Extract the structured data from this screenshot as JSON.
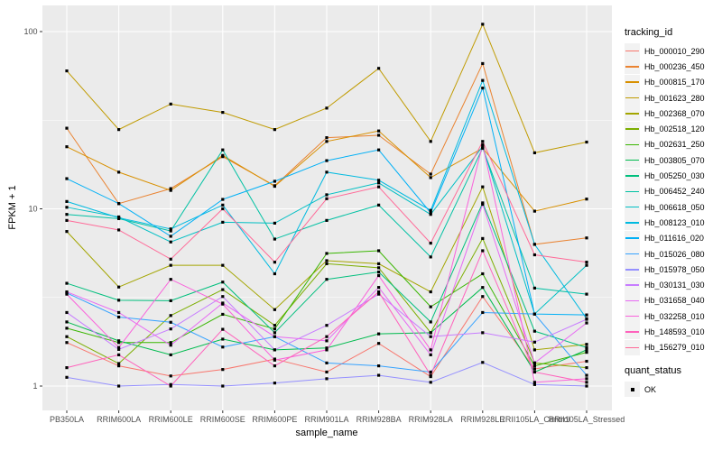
{
  "chart_data": {
    "type": "line",
    "title": "",
    "xlabel": "sample_name",
    "ylabel": "FPKM + 1",
    "y_scale": "log10",
    "y_ticks": [
      1,
      10,
      100
    ],
    "y_tick_labels": [
      "1",
      "10",
      "100"
    ],
    "y_minor_breaks": [
      3.1623,
      31.623
    ],
    "ylim": [
      0.73,
      140
    ],
    "grid": true,
    "legend_position": "right",
    "point_shape": "filled-black-square",
    "categories": [
      "PB350LA",
      "RRIM600LA",
      "RRIM600LE",
      "RRIM600SE",
      "RRIM600PE",
      "RRIM901LA",
      "RRIM928BA",
      "RRIM928LA",
      "RRIM928LE",
      "RRII105LA_Control",
      "RRII105LA_Stressed"
    ],
    "series": [
      {
        "name": "Hb_000010_290",
        "color": "#F8766D",
        "values": [
          1.76,
          1.3,
          1.14,
          1.24,
          1.42,
          1.2,
          1.74,
          1.13,
          3.2,
          1.25,
          1.38
        ]
      },
      {
        "name": "Hb_000236_450",
        "color": "#EA8331",
        "values": [
          28.5,
          10.7,
          13.0,
          19.7,
          13.5,
          25.2,
          26.0,
          15.7,
          66.0,
          6.3,
          6.85
        ]
      },
      {
        "name": "Hb_000815_170",
        "color": "#D89000",
        "values": [
          22.4,
          16.1,
          12.7,
          20.0,
          13.4,
          24.0,
          27.5,
          15.0,
          22.0,
          9.7,
          11.35
        ]
      },
      {
        "name": "Hb_001623_280",
        "color": "#C09B00",
        "values": [
          60.0,
          28.0,
          39.0,
          35.0,
          28.0,
          37.0,
          62.0,
          24.0,
          110.0,
          20.7,
          23.8
        ]
      },
      {
        "name": "Hb_002368_070",
        "color": "#A3A500",
        "values": [
          7.45,
          3.62,
          4.8,
          4.8,
          2.7,
          5.1,
          4.9,
          3.4,
          13.3,
          1.6,
          1.72
        ]
      },
      {
        "name": "Hb_002518_120",
        "color": "#7CAE00",
        "values": [
          1.9,
          1.34,
          2.5,
          3.5,
          2.2,
          4.9,
          4.65,
          2.0,
          6.8,
          1.35,
          1.27
        ]
      },
      {
        "name": "Hb_002631_250",
        "color": "#39B600",
        "values": [
          2.12,
          1.76,
          1.76,
          2.54,
          2.1,
          5.6,
          5.8,
          2.8,
          4.3,
          1.3,
          1.55
        ]
      },
      {
        "name": "Hb_003805_070",
        "color": "#00BB4E",
        "values": [
          2.3,
          1.8,
          1.5,
          1.84,
          1.6,
          1.64,
          1.97,
          2.0,
          3.6,
          1.2,
          1.6
        ]
      },
      {
        "name": "Hb_005250_030",
        "color": "#00BF7D",
        "values": [
          3.8,
          3.05,
          3.03,
          3.86,
          2.0,
          4.0,
          4.4,
          2.3,
          10.8,
          2.04,
          1.65
        ]
      },
      {
        "name": "Hb_006452_240",
        "color": "#00C1A3",
        "values": [
          9.3,
          8.8,
          7.5,
          21.5,
          6.75,
          8.6,
          10.5,
          5.35,
          22.0,
          3.57,
          3.3
        ]
      },
      {
        "name": "Hb_006618_050",
        "color": "#00BFC4",
        "values": [
          10.2,
          9.0,
          6.5,
          8.4,
          8.3,
          12.0,
          14.0,
          9.3,
          22.5,
          2.55,
          4.8
        ]
      },
      {
        "name": "Hb_008123_010",
        "color": "#00BAE0",
        "values": [
          11.0,
          8.9,
          7.7,
          10.5,
          4.3,
          16.1,
          14.5,
          9.8,
          53.0,
          6.3,
          2.4
        ]
      },
      {
        "name": "Hb_011616_020",
        "color": "#00B0F6",
        "values": [
          14.8,
          10.7,
          7.0,
          11.3,
          14.3,
          18.7,
          21.5,
          9.5,
          48.0,
          2.55,
          2.52
        ]
      },
      {
        "name": "Hb_015026_080",
        "color": "#35A2FF",
        "values": [
          3.35,
          2.45,
          2.29,
          1.66,
          1.9,
          1.35,
          1.3,
          1.2,
          2.6,
          2.55,
          1.15
        ]
      },
      {
        "name": "Hb_015978_050",
        "color": "#9590FF",
        "values": [
          1.12,
          1.0,
          1.02,
          1.0,
          1.04,
          1.1,
          1.15,
          1.05,
          1.36,
          1.02,
          1.0
        ]
      },
      {
        "name": "Hb_030131_030",
        "color": "#C77CFF",
        "values": [
          2.6,
          1.61,
          2.1,
          3.2,
          1.6,
          2.2,
          3.3,
          1.9,
          2.0,
          1.77,
          2.38
        ]
      },
      {
        "name": "Hb_031658_040",
        "color": "#E76BF3",
        "values": [
          3.4,
          2.6,
          1.7,
          2.94,
          1.9,
          1.8,
          3.6,
          1.5,
          10.6,
          1.35,
          2.27
        ]
      },
      {
        "name": "Hb_032258_010",
        "color": "#FA62DB",
        "values": [
          3.3,
          1.65,
          4.0,
          2.9,
          1.4,
          1.6,
          4.2,
          1.6,
          23.0,
          1.05,
          1.1
        ]
      },
      {
        "name": "Hb_148593_010",
        "color": "#FF62BC",
        "values": [
          1.27,
          1.5,
          1.0,
          2.09,
          1.3,
          1.9,
          3.4,
          1.15,
          5.8,
          1.2,
          1.05
        ]
      },
      {
        "name": "Hb_156279_010",
        "color": "#FF6A98",
        "values": [
          8.6,
          7.6,
          5.2,
          10.0,
          5.0,
          11.4,
          13.3,
          6.4,
          24.0,
          5.5,
          5.0
        ]
      }
    ]
  },
  "legend": {
    "tracking_title": "tracking_id",
    "quant_title": "quant_status",
    "quant_items": [
      {
        "label": "OK",
        "marker": "black-square"
      }
    ]
  },
  "colors": {
    "figure_bg": "#FFFFFF",
    "panel_bg": "#EBEBEB",
    "grid": "#FFFFFF",
    "axis_text": "#4D4D4D",
    "tick_mark": "#333333",
    "title_text": "#000000",
    "point": "#000000",
    "legend_key_bg": "#F2F2F2"
  }
}
